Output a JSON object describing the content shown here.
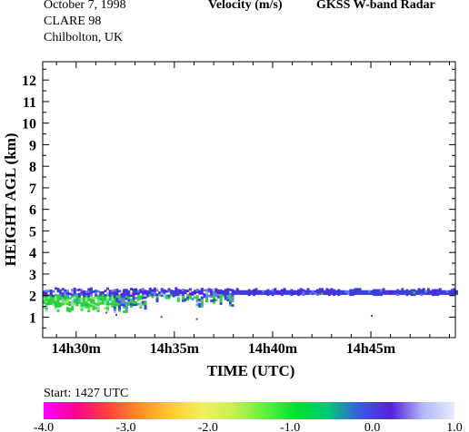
{
  "header": {
    "date": "October   7, 1998",
    "campaign": "CLARE 98",
    "location": "Chilbolton, UK",
    "quantity": "Velocity (m/s)",
    "instrument": "GKSS  W-band Radar"
  },
  "start_label": "Start: 1427 UTC",
  "chart_data": {
    "type": "heatmap",
    "title": "Velocity (m/s)",
    "xlabel": "TIME (UTC)",
    "ylabel": "HEIGHT AGL (km)",
    "x_ticks": [
      "14h30m",
      "14h35m",
      "14h40m",
      "14h45m"
    ],
    "x_tick_minutes": [
      30,
      35,
      40,
      45
    ],
    "xlim_minutes_after_1400": [
      28.3,
      49.3
    ],
    "y_ticks": [
      1,
      2,
      3,
      4,
      5,
      6,
      7,
      8,
      9,
      10,
      11,
      12
    ],
    "ylim_km": [
      0.05,
      12.85
    ],
    "colorbar": {
      "ticks": [
        "-4.0",
        "-3.0",
        "-2.0",
        "-1.0",
        "0.0",
        "1.0"
      ],
      "range": [
        -4.0,
        1.0
      ],
      "colors": [
        "#ff00ff",
        "#ff0090",
        "#ff4040",
        "#ff8c28",
        "#ffc830",
        "#f0f060",
        "#c8f050",
        "#60f040",
        "#00e030",
        "#00c878",
        "#3a5ae0",
        "#5820d8",
        "#b0b8f8",
        "#e8ecff"
      ]
    },
    "cloud_layer": {
      "top_km": 2.3,
      "base_km": 2.0,
      "extent_minutes": [
        28.3,
        49.3
      ],
      "dominant_velocity_ms": -0.3,
      "lower_fallstreak_region_minutes": [
        28.3,
        38.0
      ],
      "fallstreak_lowest_km": 1.0
    }
  }
}
